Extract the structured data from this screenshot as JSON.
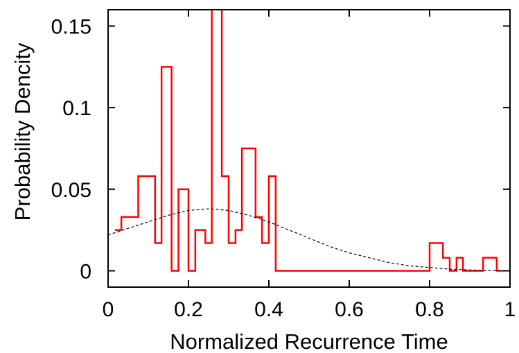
{
  "chart_data": {
    "type": "line",
    "xlabel": "Normalized Recurrence Time",
    "ylabel": "Probability Dencity",
    "xlim": [
      0,
      1
    ],
    "ylim": [
      -0.01,
      0.16
    ],
    "x_ticks": [
      0,
      0.2,
      0.4,
      0.6,
      0.8,
      1
    ],
    "x_tick_labels": [
      "0",
      "0.2",
      "0.4",
      "0.6",
      "0.8",
      "1"
    ],
    "y_ticks": [
      0,
      0.05,
      0.1,
      0.15
    ],
    "y_tick_labels": [
      "0",
      "0.05",
      "0.1",
      "0.15"
    ],
    "grid": false,
    "series": [
      {
        "style": "step",
        "color": "#ff0000",
        "edges": [
          0.017,
          0.033,
          0.075,
          0.117,
          0.133,
          0.158,
          0.175,
          0.2,
          0.217,
          0.242,
          0.258,
          0.283,
          0.3,
          0.317,
          0.333,
          0.367,
          0.383,
          0.4,
          0.417,
          0.8,
          0.833,
          0.85,
          0.867,
          0.883,
          0.9,
          0.933,
          0.967,
          0.983
        ],
        "values": [
          0.025,
          0.033,
          0.058,
          0.017,
          0.125,
          0.0,
          0.05,
          0.0,
          0.025,
          0.017,
          0.165,
          0.058,
          0.017,
          0.025,
          0.075,
          0.033,
          0.017,
          0.058,
          0.0,
          0.017,
          0.008,
          0.0,
          0.008,
          0.0,
          0.0,
          0.008,
          0.0
        ]
      },
      {
        "style": "dashed",
        "color": "#000000",
        "x": [
          0,
          0.05,
          0.1,
          0.15,
          0.2,
          0.25,
          0.3,
          0.35,
          0.4,
          0.45,
          0.5,
          0.55,
          0.6,
          0.65,
          0.7,
          0.75,
          0.8,
          0.85,
          0.9,
          0.95,
          1.0
        ],
        "y": [
          0.022,
          0.026,
          0.03,
          0.034,
          0.037,
          0.038,
          0.037,
          0.034,
          0.03,
          0.025,
          0.02,
          0.015,
          0.011,
          0.008,
          0.005,
          0.003,
          0.002,
          0.001,
          0.0005,
          0.0002,
          0.0001
        ]
      }
    ]
  }
}
